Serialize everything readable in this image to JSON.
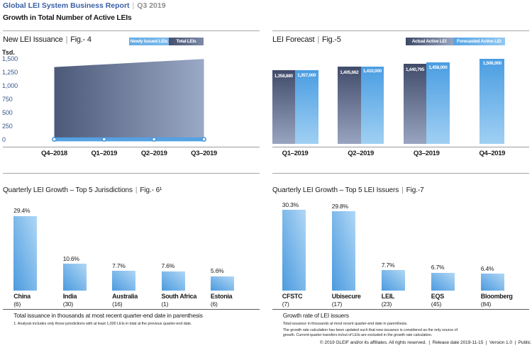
{
  "header": {
    "title": "Global LEI System Business Report",
    "separator": "|",
    "period": "Q3 2019",
    "subtitle": "Growth in Total Number of Active LEIs"
  },
  "chart_data": [
    {
      "id": "fig4",
      "type": "area",
      "title": "New LEI Issuance",
      "fig_label": "Fig.- 4",
      "legend": [
        {
          "label": "Newly Issued LEIs",
          "color": "#64ace6"
        },
        {
          "label": "Total LEIs",
          "color": "#454f6c"
        }
      ],
      "y_unit": "Tsd.",
      "ylim": [
        0,
        1500
      ],
      "yticks": [
        "1,500",
        "1,250",
        "1,000",
        "750",
        "500",
        "250",
        "0"
      ],
      "x": [
        "Q4–2018",
        "Q1–2019",
        "Q2–2019",
        "Q3–2019"
      ],
      "series": [
        {
          "name": "Total LEIs",
          "values": [
            1350,
            1400,
            1450,
            1500
          ]
        },
        {
          "name": "Newly Issued LEIs",
          "values": [
            56,
            48,
            51,
            52
          ]
        }
      ]
    },
    {
      "id": "fig5",
      "type": "bar",
      "title": "LEI Forecast",
      "fig_label": "Fig.-5",
      "legend": [
        {
          "label": "Actual Active LEI",
          "color": "#3e4966"
        },
        {
          "label": "Forecasted Active LEI",
          "color": "#54a4e5"
        }
      ],
      "x": [
        "Q1–2019",
        "Q2–2019",
        "Q3–2019",
        "Q4–2019"
      ],
      "ylim": [
        420000,
        1600000
      ],
      "series": [
        {
          "name": "Actual Active LEI",
          "values": [
            1358880,
            1405662,
            1440795,
            null
          ],
          "labels": [
            "1,358,880",
            "1,405,662",
            "1,440,795",
            null
          ]
        },
        {
          "name": "Forecasted Active LEI",
          "values": [
            1357000,
            1410000,
            1458000,
            1506000
          ],
          "labels": [
            "1,357,000",
            "1,410,000",
            "1,458,000",
            "1,506,000"
          ]
        }
      ]
    },
    {
      "id": "fig6",
      "type": "bar",
      "title": "Quarterly LEI Growth – Top 5 Jurisdictions",
      "fig_label": "Fig.- 6¹",
      "categories": [
        "China",
        "India",
        "Australia",
        "South Africa",
        "Estonia"
      ],
      "counts": [
        "(6)",
        "(30)",
        "(16)",
        "(1)",
        "(6)"
      ],
      "values": [
        29.4,
        10.6,
        7.7,
        7.6,
        5.6
      ],
      "value_labels": [
        "29.4%",
        "10.6%",
        "7.7%",
        "7.6%",
        "5.6%"
      ],
      "ylim": [
        0,
        33
      ],
      "caption": "Total issuance in thousands at most recent quarter-end date in parenthesis",
      "footnote": "1. Analysis includes only those jurisdictions with at least 1,000 LEIs in total at the previous quarter-end date."
    },
    {
      "id": "fig7",
      "type": "bar",
      "title": "Quarterly LEI Growth – Top 5 LEI Issuers",
      "fig_label": "Fig.-7",
      "categories": [
        "CFSTC",
        "Ubisecure",
        "LEIL",
        "EQS",
        "Bloomberg"
      ],
      "counts": [
        "(7)",
        "(17)",
        "(23)",
        "(45)",
        "(84)"
      ],
      "values": [
        30.3,
        29.8,
        7.7,
        6.7,
        6.4
      ],
      "value_labels": [
        "30.3%",
        "29.8%",
        "7.7%",
        "6.7%",
        "6.4%"
      ],
      "ylim": [
        0,
        31.5
      ],
      "caption": "Growth rate of LEI issuers",
      "notes": [
        "Total issuance in thousands at most recent quarter-end date in parenthesis.",
        "The growth rate calculation has been updated such that new issuance is considered as the only source of growth. Current-quarter transfers in/out of LEIs are excluded in the growth rate calculation."
      ]
    }
  ],
  "footer": "© 2019 GLEIF and/or its affiliates. All rights reserved.  |  Release date 2019-11-15  |  Version 1.0  |  Public",
  "colors": {
    "accent_blue": "#3a5fa5",
    "light_bar_blue": "#4c9bdf",
    "dark_bar_navy": "#414c6a",
    "line_blue": "#54a1e4",
    "tick_blue": "#36578f"
  }
}
